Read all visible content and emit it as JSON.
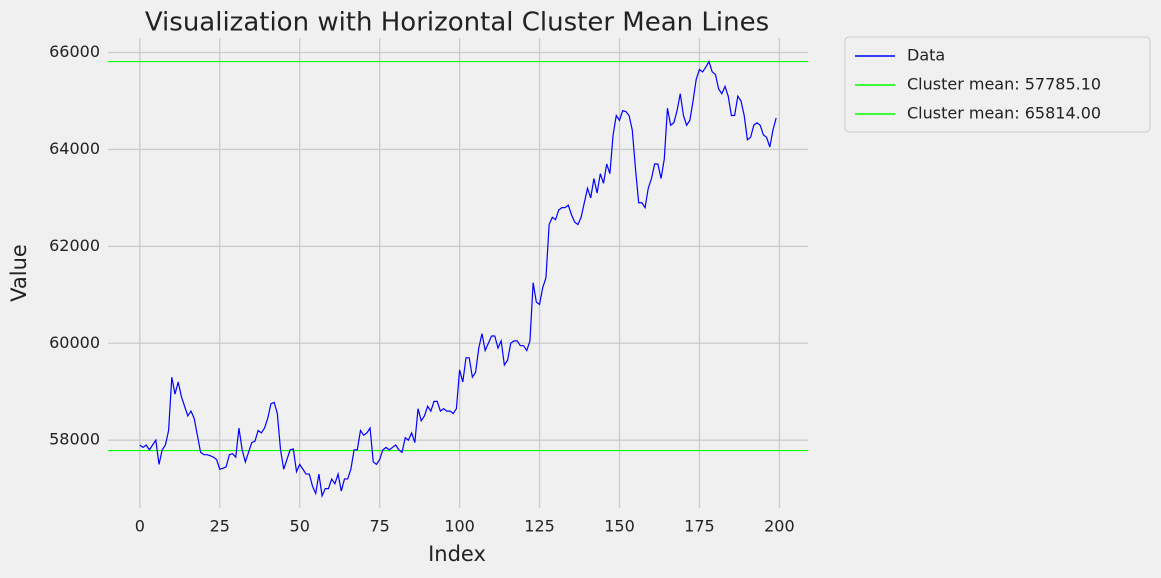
{
  "chart_data": {
    "type": "line",
    "title": "Visualization with Horizontal Cluster Mean Lines",
    "x_label": "Index",
    "y_label": "Value",
    "x": [
      0,
      1,
      2,
      3,
      4,
      5,
      6,
      7,
      8,
      9,
      10,
      11,
      12,
      13,
      14,
      15,
      16,
      17,
      18,
      19,
      20,
      21,
      22,
      23,
      24,
      25,
      26,
      27,
      28,
      29,
      30,
      31,
      32,
      33,
      34,
      35,
      36,
      37,
      38,
      39,
      40,
      41,
      42,
      43,
      44,
      45,
      46,
      47,
      48,
      49,
      50,
      51,
      52,
      53,
      54,
      55,
      56,
      57,
      58,
      59,
      60,
      61,
      62,
      63,
      64,
      65,
      66,
      67,
      68,
      69,
      70,
      71,
      72,
      73,
      74,
      75,
      76,
      77,
      78,
      79,
      80,
      81,
      82,
      83,
      84,
      85,
      86,
      87,
      88,
      89,
      90,
      91,
      92,
      93,
      94,
      95,
      96,
      97,
      98,
      99,
      100,
      101,
      102,
      103,
      104,
      105,
      106,
      107,
      108,
      109,
      110,
      111,
      112,
      113,
      114,
      115,
      116,
      117,
      118,
      119,
      120,
      121,
      122,
      123,
      124,
      125,
      126,
      127,
      128,
      129,
      130,
      131,
      132,
      133,
      134,
      135,
      136,
      137,
      138,
      139,
      140,
      141,
      142,
      143,
      144,
      145,
      146,
      147,
      148,
      149,
      150,
      151,
      152,
      153,
      154,
      155,
      156,
      157,
      158,
      159,
      160,
      161,
      162,
      163,
      164,
      165,
      166,
      167,
      168,
      169,
      170,
      171,
      172,
      173,
      174,
      175,
      176,
      177,
      178,
      179,
      180,
      181,
      182,
      183,
      184,
      185,
      186,
      187,
      188,
      189,
      190,
      191,
      192,
      193,
      194,
      195,
      196,
      197,
      198,
      199
    ],
    "series": [
      {
        "name": "Data",
        "color": "#0000ff",
        "values": [
          57900,
          57850,
          57900,
          57800,
          57900,
          58000,
          57500,
          57800,
          57900,
          58200,
          59300,
          58950,
          59200,
          58900,
          58700,
          58500,
          58600,
          58450,
          58100,
          57750,
          57700,
          57700,
          57680,
          57650,
          57600,
          57400,
          57420,
          57450,
          57700,
          57720,
          57650,
          58250,
          57800,
          57550,
          57750,
          57950,
          57980,
          58200,
          58150,
          58250,
          58450,
          58750,
          58780,
          58550,
          57800,
          57400,
          57600,
          57800,
          57820,
          57350,
          57500,
          57400,
          57300,
          57300,
          57050,
          56900,
          57300,
          56850,
          57000,
          57000,
          57200,
          57100,
          57300,
          56950,
          57200,
          57200,
          57400,
          57800,
          57800,
          58200,
          58100,
          58150,
          58250,
          57550,
          57500,
          57600,
          57800,
          57850,
          57800,
          57850,
          57900,
          57800,
          57750,
          58050,
          58000,
          58150,
          57950,
          58650,
          58400,
          58500,
          58700,
          58600,
          58800,
          58800,
          58600,
          58650,
          58600,
          58600,
          58550,
          58650,
          59450,
          59200,
          59700,
          59700,
          59300,
          59400,
          59900,
          60200,
          59850,
          60000,
          60150,
          60150,
          59900,
          60050,
          59550,
          59650,
          60000,
          60050,
          60050,
          59950,
          59950,
          59850,
          60050,
          61250,
          60850,
          60800,
          61150,
          61350,
          62450,
          62600,
          62550,
          62750,
          62800,
          62800,
          62850,
          62650,
          62500,
          62450,
          62600,
          62900,
          63200,
          63000,
          63400,
          63100,
          63500,
          63300,
          63700,
          63500,
          64300,
          64700,
          64600,
          64800,
          64780,
          64700,
          64400,
          63600,
          62900,
          62900,
          62800,
          63200,
          63400,
          63700,
          63700,
          63400,
          63800,
          64850,
          64500,
          64550,
          64800,
          65150,
          64700,
          64500,
          64600,
          65000,
          65450,
          65650,
          65600,
          65700,
          65814,
          65600,
          65550,
          65250,
          65150,
          65300,
          65100,
          64700,
          64700,
          65100,
          65000,
          64700,
          64200,
          64250,
          64500,
          64550,
          64500,
          64300,
          64250,
          64050,
          64400,
          64650
        ]
      }
    ],
    "hlines": [
      {
        "name": "Cluster mean: 57785.10",
        "color": "#00ff00",
        "value": 57785.1
      },
      {
        "name": "Cluster mean: 65814.00",
        "color": "#00ff00",
        "value": 65814
      }
    ],
    "xlim": [
      -9.95,
      208.95
    ],
    "xticks": [
      0,
      25,
      50,
      75,
      100,
      125,
      150,
      175,
      200
    ],
    "ylim": [
      56600,
      66300
    ],
    "yticks": [
      58000,
      60000,
      62000,
      64000,
      66000
    ],
    "grid": true,
    "legend": "outside upper right"
  }
}
